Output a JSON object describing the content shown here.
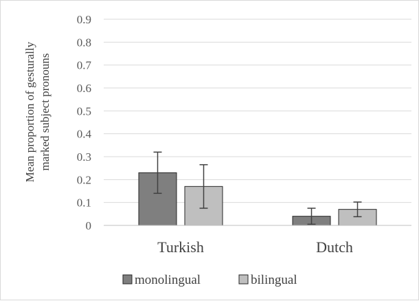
{
  "chart_data": {
    "type": "bar",
    "title": "",
    "xlabel": "",
    "ylabel": [
      "Mean proportion of gesturally",
      "marked subject pronouns"
    ],
    "categories": [
      "Turkish",
      "Dutch"
    ],
    "series": [
      {
        "name": "monolingual",
        "color": "#7f7f7f",
        "values": [
          0.23,
          0.04
        ],
        "error": [
          0.09,
          0.035
        ]
      },
      {
        "name": "bilingual",
        "color": "#bfbfbf",
        "values": [
          0.17,
          0.07
        ],
        "error": [
          0.095,
          0.032
        ]
      }
    ],
    "ylim": [
      0,
      0.9
    ],
    "yticks": [
      0,
      0.1,
      0.2,
      0.3,
      0.4,
      0.5,
      0.6,
      0.7,
      0.8,
      0.9
    ],
    "ytick_labels": [
      "0",
      "0.1",
      "0.2",
      "0.3",
      "0.4",
      "0.5",
      "0.6",
      "0.7",
      "0.8",
      "0.9"
    ],
    "grid": true,
    "legend_position": "bottom",
    "colors": {
      "grid": "#d9d9d9",
      "axis": "#bfbfbf",
      "bar_outline": "#262626",
      "error_bar": "#404040"
    }
  }
}
